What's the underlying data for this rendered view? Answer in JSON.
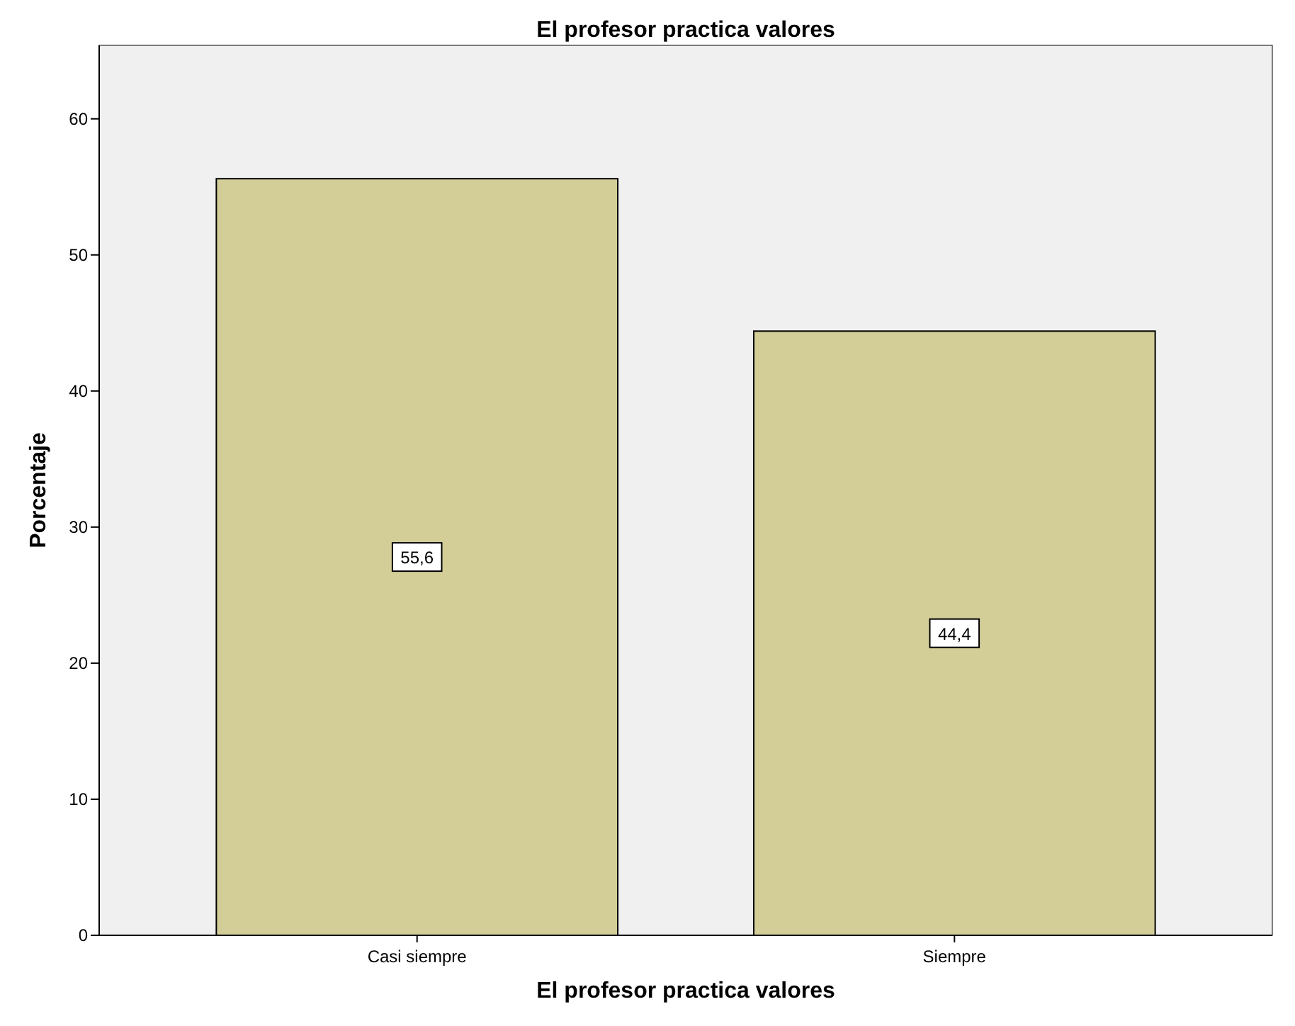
{
  "chart_data": {
    "type": "bar",
    "title": "El profesor practica valores",
    "xlabel": "El profesor practica valores",
    "ylabel": "Porcentaje",
    "categories": [
      "Casi siempre",
      "Siempre"
    ],
    "values": [
      55.6,
      44.4
    ],
    "value_labels": [
      "55,6",
      "44,4"
    ],
    "color": "#d3ce98",
    "ylim": [
      0,
      65.4
    ],
    "yticks": [
      0,
      10,
      20,
      30,
      40,
      50,
      60
    ],
    "grid": false
  }
}
